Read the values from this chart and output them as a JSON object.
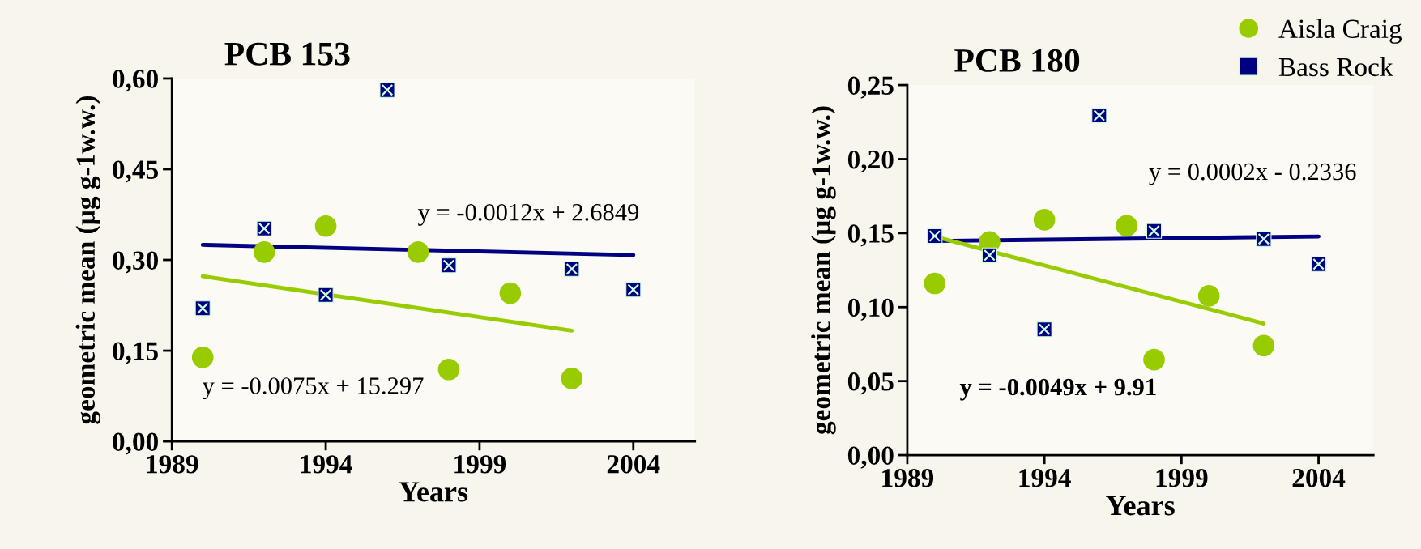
{
  "chart_data": [
    {
      "type": "scatter",
      "title": "PCB 153",
      "xlabel": "Years",
      "ylabel": "geometric mean (µg g-1w.w.)",
      "xlim": [
        1989,
        2006
      ],
      "xticks": [
        1989,
        1994,
        1999,
        2004
      ],
      "ylim": [
        0,
        0.6
      ],
      "yticks": [
        {
          "value": 0,
          "label": "0,00"
        },
        {
          "value": 0.15,
          "label": "0,15"
        },
        {
          "value": 0.3,
          "label": "0,30"
        },
        {
          "value": 0.45,
          "label": "0,45"
        },
        {
          "value": 0.6,
          "label": "0,60"
        }
      ],
      "grid": false,
      "legend": false,
      "series": [
        {
          "marker": "circle",
          "color": "#99cc00",
          "x": [
            1990,
            1992,
            1994,
            1997,
            1998,
            2000,
            2002
          ],
          "values": [
            0.139,
            0.313,
            0.356,
            0.313,
            0.119,
            0.245,
            0.104
          ]
        },
        {
          "marker": "square",
          "color": "#000080",
          "x": [
            1990,
            1992,
            1994,
            1996,
            1998,
            2002,
            2004
          ],
          "values": [
            0.22,
            0.352,
            0.242,
            0.581,
            0.291,
            0.285,
            0.251
          ]
        },
        {
          "type": "line",
          "color": "#000080",
          "x": [
            1990,
            2004
          ],
          "values": [
            0.325,
            0.308
          ]
        },
        {
          "type": "line",
          "color": "#99cc00",
          "x": [
            1990,
            2002
          ],
          "values": [
            0.273,
            0.183
          ]
        }
      ],
      "annotations": [
        "y = -0.0012x + 2.6849",
        "y = -0.0075x + 15.297"
      ]
    },
    {
      "type": "scatter",
      "title": "PCB 180",
      "xlabel": "Years",
      "ylabel": "geometric mean (µg g-1w.w.)",
      "xlim": [
        1989,
        2006
      ],
      "xticks": [
        1989,
        1994,
        1999,
        2004
      ],
      "ylim": [
        0,
        0.25
      ],
      "yticks": [
        {
          "value": 0,
          "label": "0,00"
        },
        {
          "value": 0.05,
          "label": "0,05"
        },
        {
          "value": 0.1,
          "label": "0,10"
        },
        {
          "value": 0.15,
          "label": "0,15"
        },
        {
          "value": 0.2,
          "label": "0,20"
        },
        {
          "value": 0.25,
          "label": "0,25"
        }
      ],
      "grid": false,
      "legend": "top right",
      "series": [
        {
          "name": "Aisla Craig",
          "marker": "circle",
          "color": "#99cc00",
          "x": [
            1990,
            1992,
            1994,
            1997,
            1998,
            2000,
            2002
          ],
          "values": [
            0.116,
            0.144,
            0.159,
            0.155,
            0.0645,
            0.1076,
            0.074
          ]
        },
        {
          "name": "Bass Rock",
          "marker": "square",
          "color": "#000080",
          "x": [
            1990,
            1992,
            1994,
            1996,
            1998,
            2002,
            2004
          ],
          "values": [
            0.148,
            0.135,
            0.085,
            0.2295,
            0.1515,
            0.146,
            0.129
          ]
        },
        {
          "type": "line",
          "color": "#000080",
          "x": [
            1990,
            2004
          ],
          "values": [
            0.1447,
            0.1477
          ]
        },
        {
          "type": "line",
          "color": "#99cc00",
          "x": [
            1990,
            2002
          ],
          "values": [
            0.1477,
            0.0889
          ]
        }
      ],
      "annotations": [
        "y = 0.0002x - 0.2336",
        "y = -0.0049x + 9.91"
      ]
    }
  ]
}
